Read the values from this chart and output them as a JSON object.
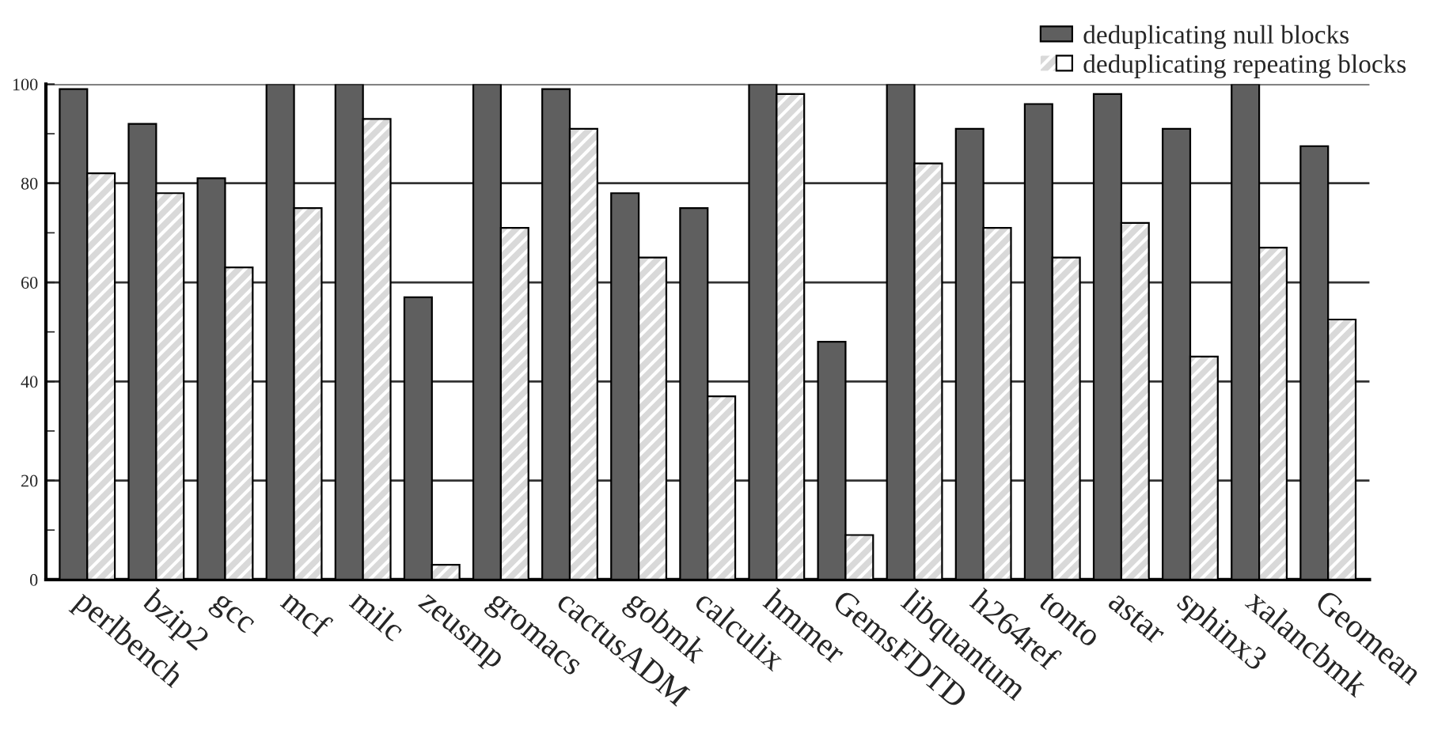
{
  "chart_data": {
    "type": "bar",
    "categories": [
      "perlbench",
      "bzip2",
      "gcc",
      "mcf",
      "milc",
      "zeusmp",
      "gromacs",
      "cactusADM",
      "gobmk",
      "calculix",
      "hmmer",
      "GemsFDTD",
      "libquantum",
      "h264ref",
      "tonto",
      "astar",
      "sphinx3",
      "xalancbmk",
      "Geomean"
    ],
    "series": [
      {
        "name": "deduplicating null blocks",
        "color": "#5f5f5f",
        "values": [
          99,
          92,
          81,
          100,
          100,
          57,
          100,
          99,
          78,
          75,
          100,
          48,
          100,
          91,
          96,
          98,
          91,
          100,
          87.5
        ]
      },
      {
        "name": "deduplicating repeating blocks",
        "color": "#d9d9d9",
        "values": [
          82,
          78,
          63,
          75,
          93,
          3,
          71,
          91,
          65,
          37,
          98,
          9,
          84,
          71,
          65,
          72,
          45,
          67,
          52.5
        ]
      }
    ],
    "ylim": [
      0,
      100
    ],
    "yticks": [
      0,
      20,
      40,
      60,
      80,
      100
    ],
    "grid": "y",
    "legend": "top right"
  }
}
